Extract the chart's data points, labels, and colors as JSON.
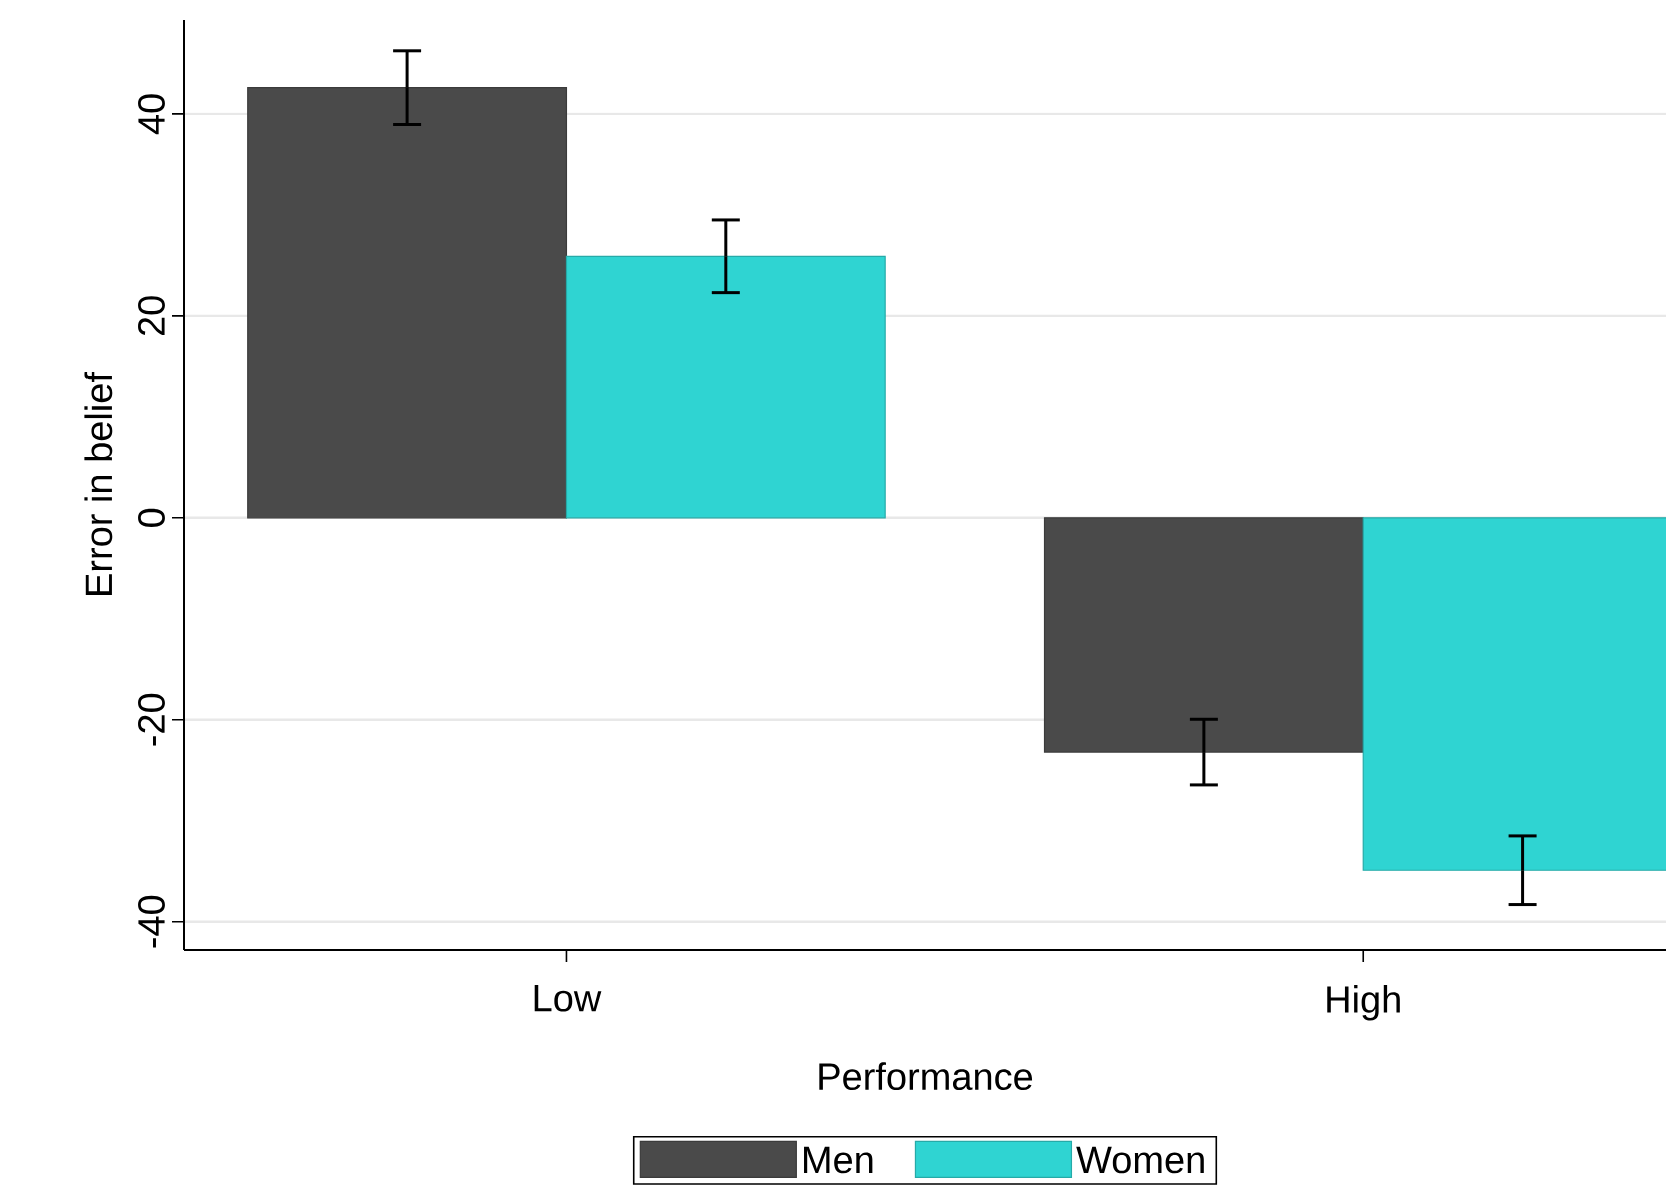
{
  "chart_data": {
    "type": "bar",
    "xlabel": "Performance",
    "ylabel": "Error in belief",
    "categories": [
      "Low",
      "High"
    ],
    "series": [
      {
        "name": "Men",
        "color": "#4a4a4a",
        "values": [
          42.6,
          -23.2
        ],
        "errors": [
          3.65,
          3.25
        ]
      },
      {
        "name": "Women",
        "color": "#2fd4d2",
        "values": [
          25.9,
          -34.9
        ],
        "errors": [
          3.6,
          3.4
        ]
      }
    ],
    "ylim": [
      -42.8,
      49.3
    ],
    "yticks": [
      -40,
      -20,
      0,
      20,
      40
    ],
    "grid": "y",
    "legend": "bottom"
  }
}
